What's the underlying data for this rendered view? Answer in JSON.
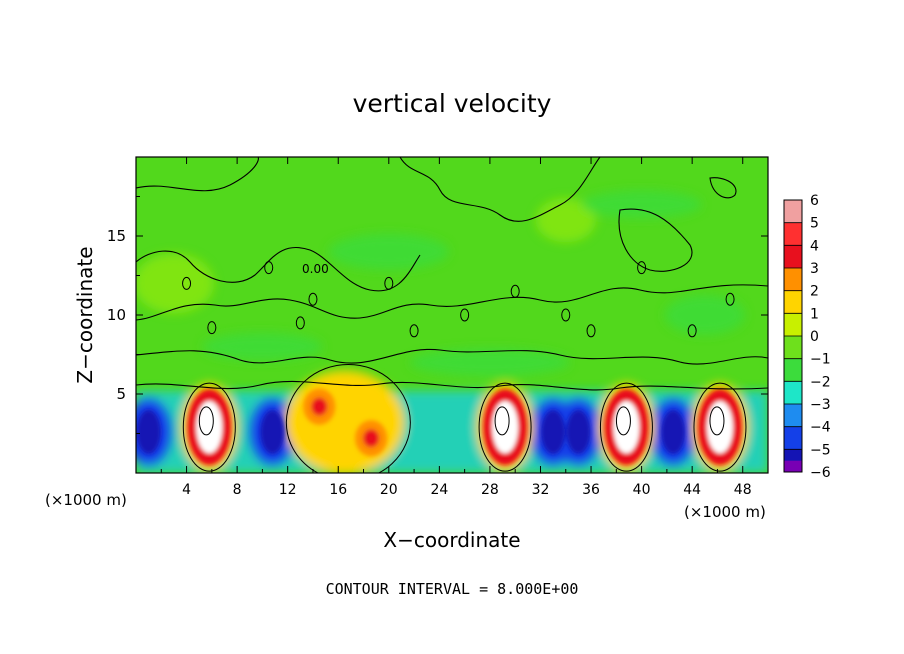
{
  "chart_data": {
    "type": "heatmap",
    "title": "vertical velocity",
    "xlabel": "X−coordinate",
    "ylabel": "Z−coordinate",
    "x_unit_label": "(×1000 m)",
    "y_unit_label": "(×1000 m)",
    "xlim": [
      0,
      50
    ],
    "ylim": [
      0,
      20
    ],
    "x_ticks": [
      "4",
      "8",
      "12",
      "16",
      "20",
      "24",
      "28",
      "32",
      "36",
      "40",
      "44",
      "48"
    ],
    "y_ticks": [
      "5",
      "10",
      "15"
    ],
    "colorbar": {
      "levels": [
        "6",
        "5",
        "4",
        "3",
        "2",
        "1",
        "0",
        "−1",
        "−2",
        "−3",
        "−4",
        "−5",
        "−6"
      ],
      "range": [
        -6,
        6
      ],
      "colors": [
        "#f0a0a0",
        "#ff3030",
        "#e8101e",
        "#ff9000",
        "#ffd400",
        "#c8f000",
        "#6ee01c",
        "#3cdc3c",
        "#1ee6c8",
        "#1e8cf0",
        "#1440e8",
        "#1414b4",
        "#7800b4"
      ]
    },
    "contour_label": "0.00",
    "footer": "CONTOUR INTERVAL = 8.000E+00",
    "updraft_cores_x": [
      5.8,
      29.2,
      38.8,
      46.2
    ],
    "secondary_updraft_x": [
      14.5,
      18.6
    ],
    "downdraft_cores_x": [
      1.0,
      10.8,
      33.0,
      35.0,
      42.5
    ],
    "background_value": 0.3
  }
}
